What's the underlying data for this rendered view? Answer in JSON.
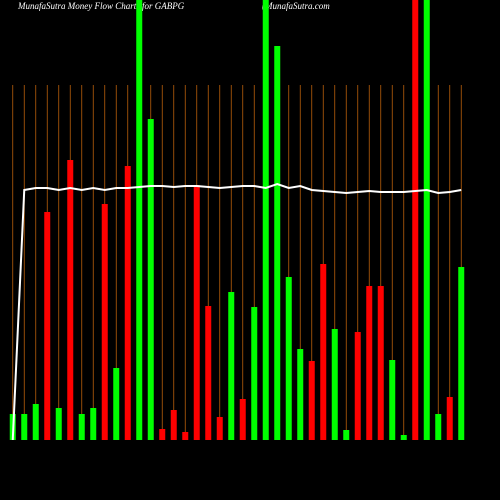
{
  "chart_data": {
    "type": "bar",
    "title": "MunafaSutra  Money Flow  Charts for GABPG",
    "subtitle": "(MunafaSutra.com",
    "categories": [
      null,
      null,
      null,
      null,
      null,
      null,
      null,
      null,
      null,
      null,
      null,
      null,
      null,
      null,
      null,
      null,
      null,
      null,
      null,
      null,
      null,
      null,
      null,
      null,
      null,
      null,
      null,
      null,
      null,
      null,
      null,
      null,
      null,
      null,
      null,
      null,
      null,
      null,
      null,
      null
    ],
    "series": [
      {
        "name": "Money Flow",
        "values": [
          26,
          26,
          36,
          228,
          32,
          280,
          26,
          32,
          236,
          72,
          274,
          440,
          321,
          11,
          30,
          8,
          255,
          134,
          23,
          148,
          41,
          133,
          440,
          394,
          163,
          91,
          79,
          176,
          111,
          10,
          108,
          154,
          154,
          80,
          5,
          440,
          440,
          26,
          43,
          173
        ],
        "colors": [
          "#00ff00",
          "#00ff00",
          "#00ff00",
          "#ff0000",
          "#00ff00",
          "#ff0000",
          "#00ff00",
          "#00ff00",
          "#ff0000",
          "#00ff00",
          "#ff0000",
          "#00ff00",
          "#00ff00",
          "#ff0000",
          "#ff0000",
          "#ff0000",
          "#ff0000",
          "#ff0000",
          "#ff0000",
          "#00ff00",
          "#ff0000",
          "#00ff00",
          "#00ff00",
          "#00ff00",
          "#00ff00",
          "#00ff00",
          "#ff0000",
          "#ff0000",
          "#00ff00",
          "#00ff00",
          "#ff0000",
          "#ff0000",
          "#ff0000",
          "#00ff00",
          "#00ff00",
          "#ff0000",
          "#00ff00",
          "#00ff00",
          "#ff0000",
          "#00ff00"
        ]
      },
      {
        "name": "Trend",
        "type": "line",
        "color": "#ffffff",
        "values": [
          0,
          250,
          252,
          252,
          250,
          252,
          250,
          252,
          250,
          252,
          252,
          253,
          254,
          254,
          253,
          254,
          254,
          253,
          252,
          253,
          254,
          254,
          252,
          256,
          252,
          254,
          250,
          249,
          248,
          247,
          248,
          249,
          248,
          248,
          248,
          249,
          250,
          247,
          248,
          250
        ]
      }
    ],
    "ylim": [
      0,
      440
    ],
    "grid_color": "#b8600b"
  }
}
